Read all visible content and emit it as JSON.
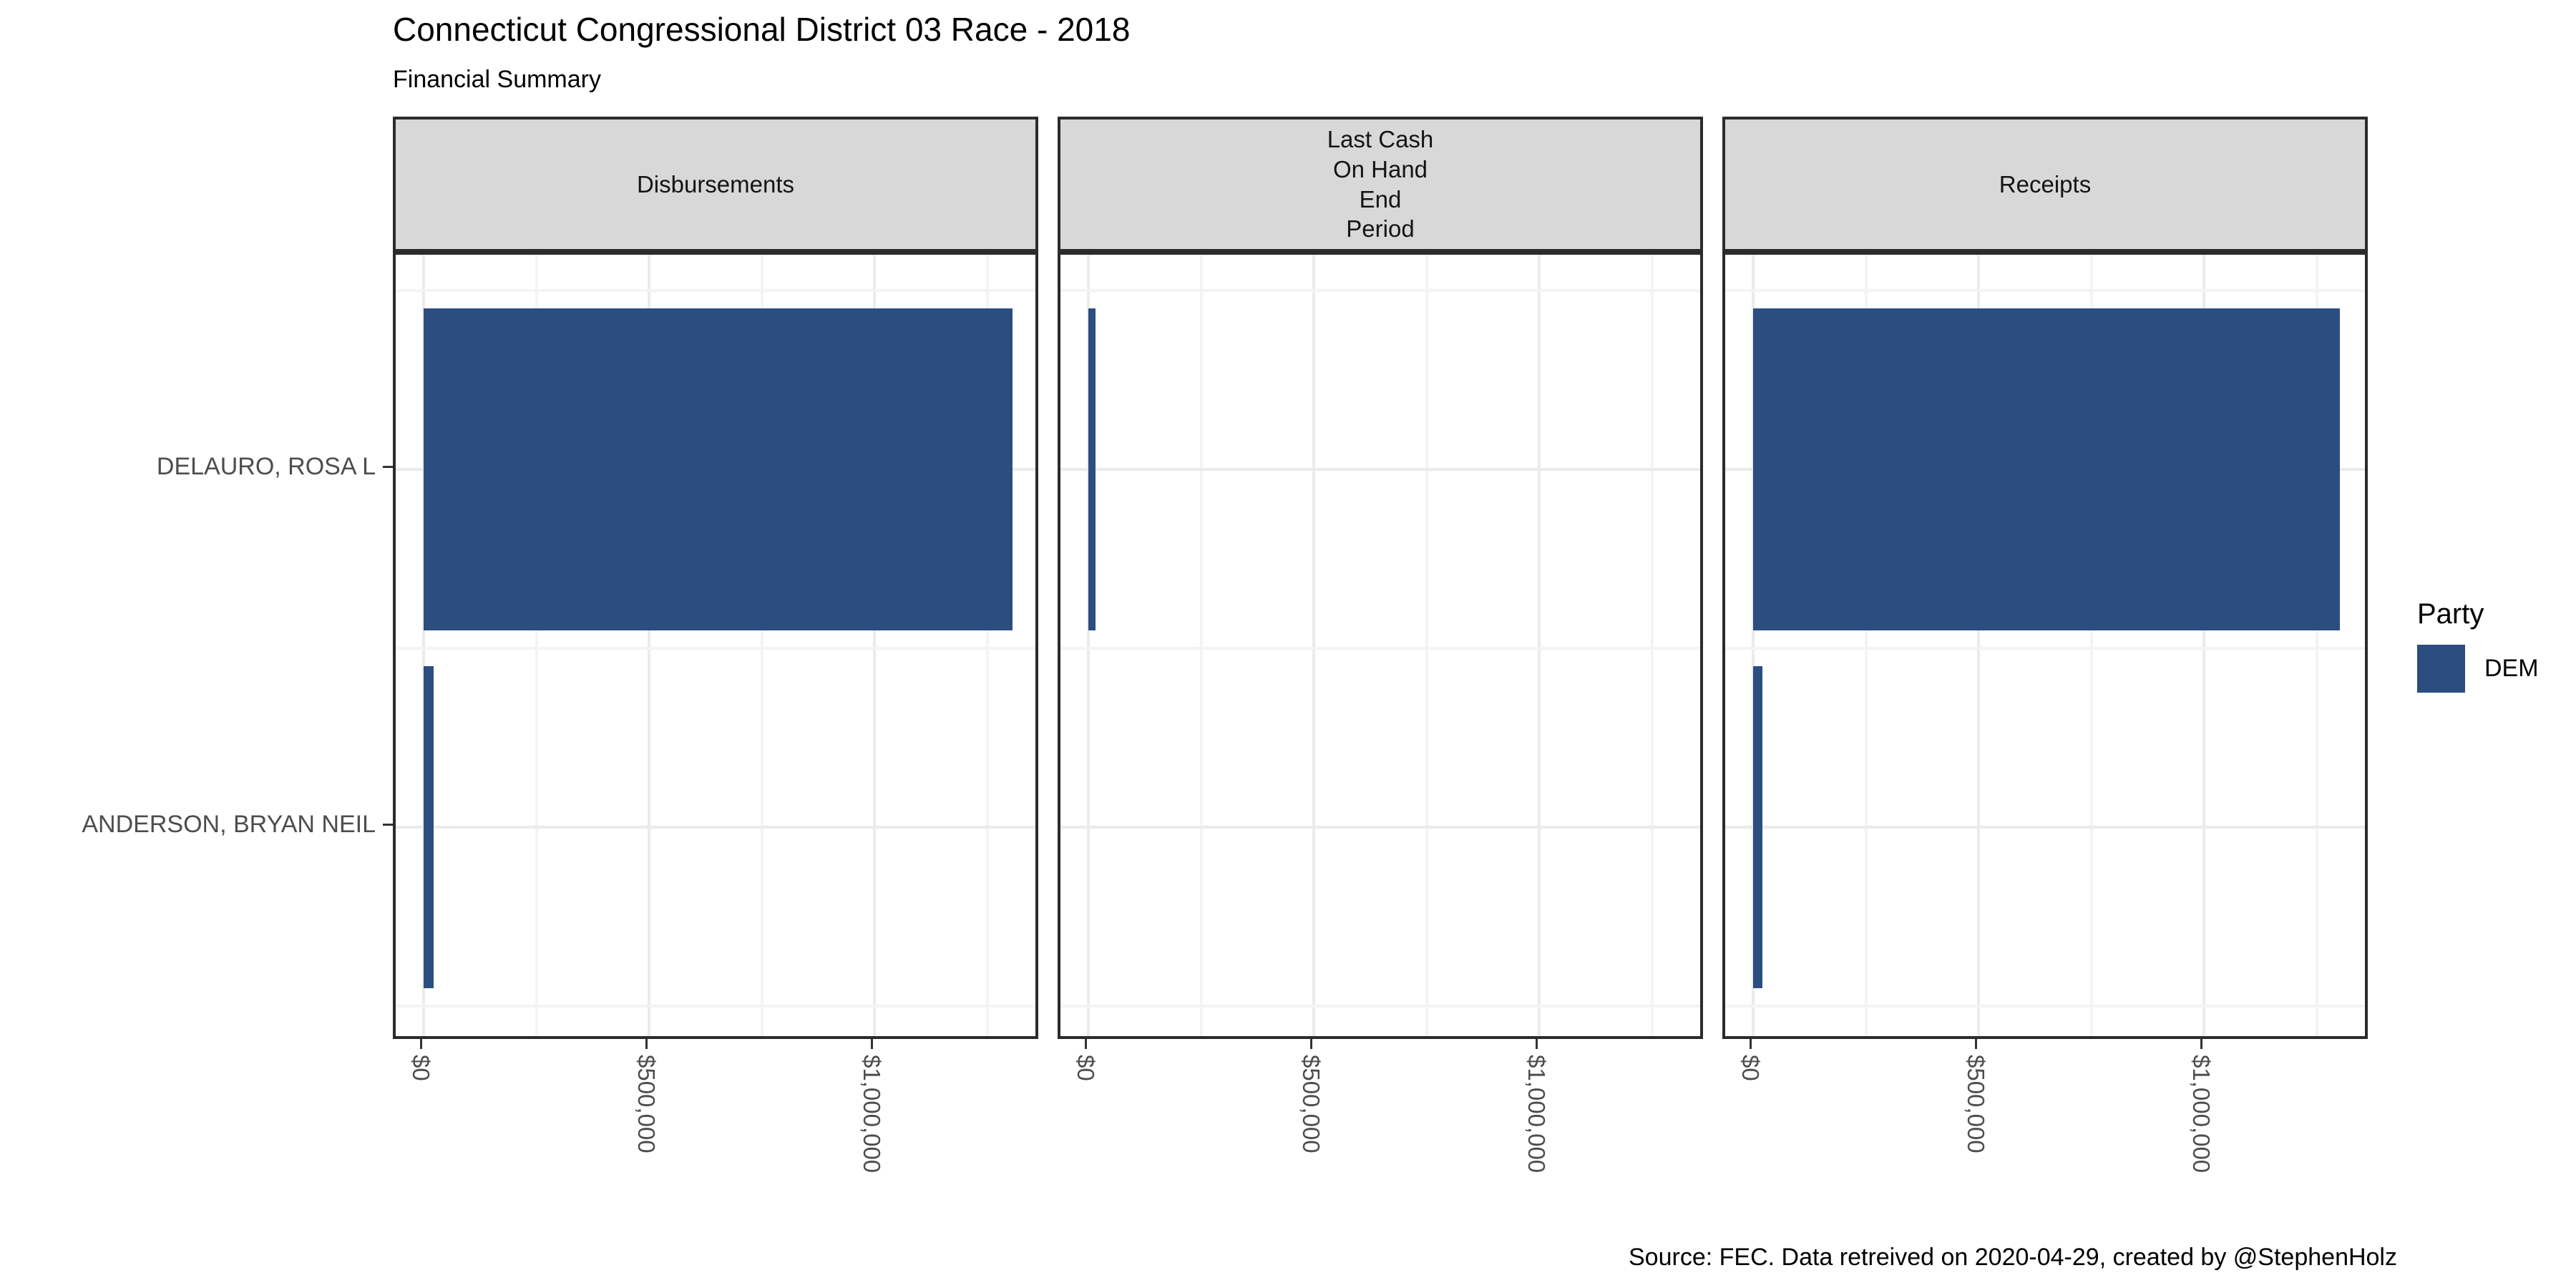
{
  "title": "Connecticut Congressional District 03 Race - 2018",
  "subtitle": "Financial Summary",
  "caption": "Source: FEC. Data retreived on 2020-04-29, created by @StephenHolz",
  "legend": {
    "title": "Party",
    "items": [
      {
        "label": "DEM",
        "color": "#2b4d80"
      }
    ]
  },
  "axis": {
    "y_labels": [
      "DELAURO, ROSA L",
      "ANDERSON, BRYAN NEIL"
    ]
  },
  "chart_data": {
    "type": "bar",
    "orientation": "horizontal",
    "categories": [
      "DELAURO, ROSA L",
      "ANDERSON, BRYAN NEIL"
    ],
    "facets": [
      {
        "key": "disbursements",
        "label": "Disbursements",
        "values": [
          1306000,
          22000
        ]
      },
      {
        "key": "last-cash-on-hand-end-period",
        "label": "Last Cash\nOn Hand\nEnd\nPeriod",
        "values": [
          16000,
          0
        ]
      },
      {
        "key": "receipts",
        "label": "Receipts",
        "values": [
          1302000,
          21000
        ]
      }
    ],
    "series": [
      {
        "name": "DEM",
        "color": "#2b4d80",
        "applies_to": "all bars"
      }
    ],
    "title": "Connecticut Congressional District 03 Race - 2018",
    "subtitle": "Financial Summary",
    "xlabel": "",
    "ylabel": "",
    "x_ticks": [
      "$0",
      "$500,000",
      "$1,000,000"
    ],
    "x_tick_values": [
      0,
      500000,
      1000000
    ],
    "x_minor_tick_step": 250000,
    "xlim": [
      -62000,
      1371000
    ],
    "grid": true,
    "legend_title": "Party",
    "legend_position": "right",
    "colors": {
      "bar": "#2b4d80",
      "strip_background": "#d8d8d8",
      "panel_border": "#2b2b2b",
      "grid_major": "#ebebeb",
      "grid_minor": "#f4f4f4",
      "axis_text": "#4d4d4d"
    }
  }
}
